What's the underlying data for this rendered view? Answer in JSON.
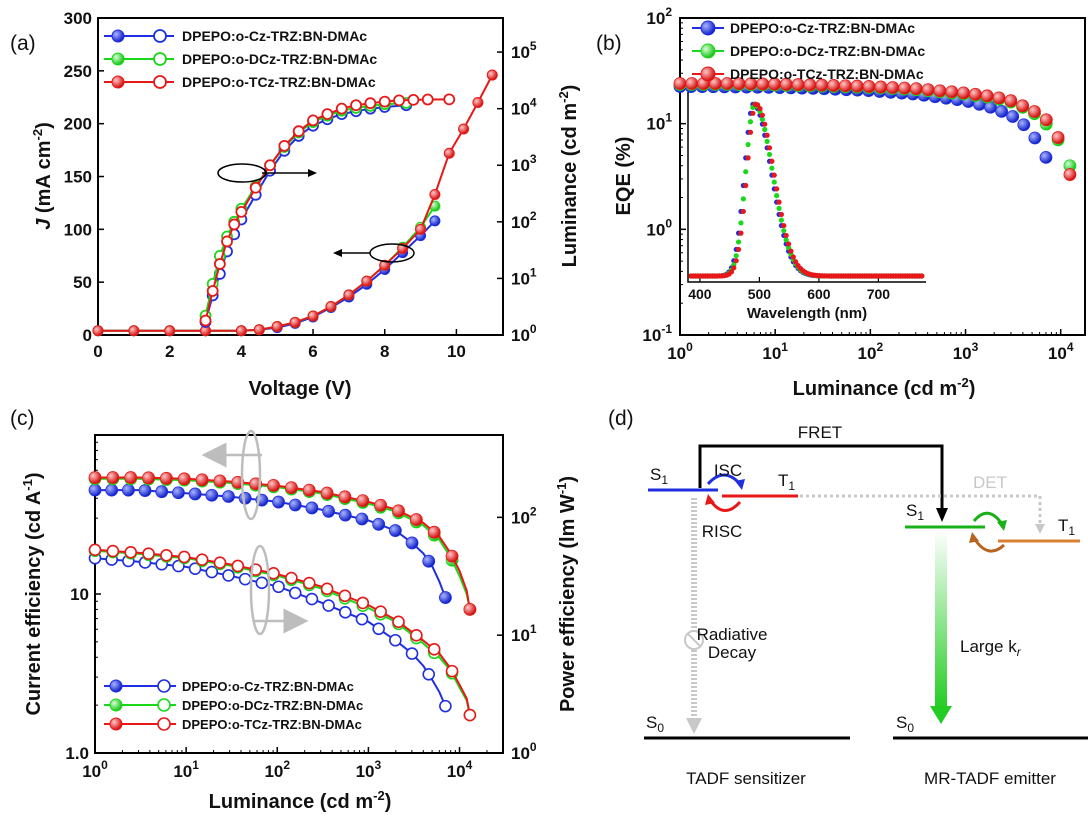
{
  "panels": {
    "a": "(a)",
    "b": "(b)",
    "c": "(c)",
    "d": "(d)"
  },
  "series_names": [
    "DPEPO:o-Cz-TRZ:BN-DMAc",
    "DPEPO:o-DCz-TRZ:BN-DMAc",
    "DPEPO:o-TCz-TRZ:BN-DMAc"
  ],
  "colors": {
    "s1": "#1f2fe0",
    "s2": "#19d819",
    "s3": "#e81818"
  },
  "chart_data": [
    {
      "type": "line",
      "panel": "a",
      "xlabel": "Voltage (V)",
      "ylabel": "J (mA cm-2)",
      "y2label": "Luminance (cd m-2)",
      "xlim": [
        0,
        11.3
      ],
      "ylim": [
        0,
        300
      ],
      "y2lim": [
        1,
        400000
      ],
      "y2scale": "log",
      "xticks": [
        "0",
        "2",
        "4",
        "6",
        "8",
        "10"
      ],
      "yticks": [
        "0",
        "50",
        "100",
        "150",
        "200",
        "250",
        "300"
      ],
      "y2ticks": [
        "10^0",
        "10^1",
        "10^2",
        "10^3",
        "10^4",
        "10^5"
      ],
      "current_density": [
        {
          "name": "DPEPO:o-Cz-TRZ:BN-DMAc",
          "x": [
            0,
            1,
            2,
            3,
            4,
            4.5,
            5,
            5.5,
            6,
            6.5,
            7,
            7.5,
            8,
            8.5,
            9,
            9.4
          ],
          "y": [
            4,
            4,
            4,
            4,
            4,
            5,
            7,
            11,
            17,
            26,
            36,
            48,
            62,
            78,
            94,
            108
          ]
        },
        {
          "name": "DPEPO:o-DCz-TRZ:BN-DMAc",
          "x": [
            0,
            1,
            2,
            3,
            4,
            4.5,
            5,
            5.5,
            6,
            6.5,
            7,
            7.5,
            8,
            8.5,
            9,
            9.4
          ],
          "y": [
            4,
            4,
            4,
            4,
            4,
            5,
            8,
            12,
            18,
            27,
            38,
            51,
            66,
            83,
            102,
            122
          ]
        },
        {
          "name": "DPEPO:o-TCz-TRZ:BN-DMAc",
          "x": [
            0,
            1,
            2,
            3,
            4,
            4.5,
            5,
            5.5,
            6,
            6.5,
            7,
            7.5,
            8,
            8.5,
            9,
            9.4,
            9.8,
            10.2,
            10.6,
            11
          ],
          "y": [
            4,
            4,
            4,
            4,
            4,
            5,
            8,
            12,
            18,
            27,
            38,
            51,
            66,
            82,
            100,
            133,
            172,
            195,
            220,
            246
          ]
        }
      ],
      "luminance": [
        {
          "name": "DPEPO:o-Cz-TRZ:BN-DMAc",
          "x": [
            3,
            3.2,
            3.4,
            3.6,
            3.8,
            4,
            4.4,
            4.8,
            5.2,
            5.6,
            6,
            6.4,
            6.8,
            7.2,
            7.6,
            8,
            8.6
          ],
          "y": [
            1.7,
            5,
            12,
            30,
            60,
            110,
            300,
            800,
            1800,
            3300,
            5000,
            6500,
            8000,
            9000,
            10000,
            10700,
            11500
          ]
        },
        {
          "name": "DPEPO:o-DCz-TRZ:BN-DMAc",
          "x": [
            3,
            3.2,
            3.4,
            3.6,
            3.8,
            4,
            4.4,
            4.8,
            5.2,
            5.6,
            6,
            6.4,
            6.8,
            7.2,
            7.6,
            8,
            8.6
          ],
          "y": [
            2.2,
            8,
            25,
            55,
            100,
            170,
            420,
            1000,
            2100,
            3800,
            5800,
            7500,
            9200,
            10300,
            11200,
            12000,
            12600
          ]
        },
        {
          "name": "DPEPO:o-TCz-TRZ:BN-DMAc",
          "x": [
            3,
            3.2,
            3.4,
            3.6,
            3.8,
            4,
            4.4,
            4.8,
            5.2,
            5.6,
            6,
            6.4,
            6.8,
            7.2,
            7.6,
            8,
            8.4,
            8.8,
            9.2,
            9.8
          ],
          "y": [
            1.8,
            6,
            18,
            45,
            90,
            150,
            400,
            1000,
            2200,
            4000,
            6200,
            8000,
            10000,
            11500,
            12500,
            13300,
            14000,
            14300,
            14500,
            14600
          ]
        }
      ]
    },
    {
      "type": "scatter",
      "panel": "b",
      "xlabel": "Luminance (cd m-2)",
      "ylabel": "EQE (%)",
      "xscale": "log",
      "yscale": "log",
      "xlim": [
        1,
        18000
      ],
      "ylim": [
        0.1,
        100
      ],
      "xticks": [
        "10^0",
        "10^1",
        "10^2",
        "10^3",
        "10^4"
      ],
      "yticks": [
        "10^-1",
        "10^0",
        "10^1",
        "10^2"
      ],
      "series": [
        {
          "name": "DPEPO:o-Cz-TRZ:BN-DMAc",
          "points": [
            [
              1,
              22.5
            ],
            [
              3,
              22.3
            ],
            [
              10,
              22
            ],
            [
              30,
              21.5
            ],
            [
              100,
              20.5
            ],
            [
              300,
              19
            ],
            [
              1000,
              16.5
            ],
            [
              2000,
              14
            ],
            [
              3000,
              12
            ],
            [
              4000,
              10
            ],
            [
              5000,
              8
            ],
            [
              6000,
              6.3
            ],
            [
              7000,
              4.8
            ]
          ]
        },
        {
          "name": "DPEPO:o-DCz-TRZ:BN-DMAc",
          "points": [
            [
              1,
              23.5
            ],
            [
              3,
              23.5
            ],
            [
              10,
              23.2
            ],
            [
              30,
              22.7
            ],
            [
              100,
              22
            ],
            [
              300,
              21
            ],
            [
              1000,
              19
            ],
            [
              2000,
              17.5
            ],
            [
              3000,
              16
            ],
            [
              5000,
              13
            ],
            [
              7000,
              10
            ],
            [
              9000,
              7.5
            ],
            [
              11000,
              5.5
            ],
            [
              12500,
              4
            ]
          ]
        },
        {
          "name": "DPEPO:o-TCz-TRZ:BN-DMAc",
          "points": [
            [
              1,
              24
            ],
            [
              3,
              24
            ],
            [
              10,
              23.7
            ],
            [
              30,
              23.2
            ],
            [
              100,
              22.5
            ],
            [
              300,
              21.5
            ],
            [
              1000,
              19.5
            ],
            [
              2000,
              18
            ],
            [
              3000,
              16.5
            ],
            [
              5000,
              13.5
            ],
            [
              7000,
              11
            ],
            [
              9000,
              8
            ],
            [
              11000,
              5.5
            ],
            [
              12500,
              3.3
            ]
          ]
        }
      ],
      "inset": {
        "type": "line",
        "xlabel": "Wavelength (nm)",
        "xlim": [
          380,
          780
        ],
        "xticks": [
          "400",
          "500",
          "600",
          "700"
        ],
        "series": [
          {
            "name": "DPEPO:o-Cz-TRZ:BN-DMAc",
            "peak": 490
          },
          {
            "name": "DPEPO:o-DCz-TRZ:BN-DMAc",
            "peak": 492
          },
          {
            "name": "DPEPO:o-TCz-TRZ:BN-DMAc",
            "peak": 494
          }
        ]
      }
    },
    {
      "type": "line",
      "panel": "c",
      "xlabel": "Luminance (cd m-2)",
      "ylabel": "Current efficiency (cd A-1)",
      "y2label": "Power efficiency (lm W-1)",
      "xscale": "log",
      "yscale": "log",
      "xlim": [
        1,
        30000
      ],
      "ylim": [
        1,
        100
      ],
      "y2lim": [
        1,
        500
      ],
      "xticks": [
        "10^0",
        "10^1",
        "10^2",
        "10^3",
        "10^4"
      ],
      "yticks": [
        "1.0",
        "10"
      ],
      "y2ticks": [
        "10^0",
        "10^1",
        "10^2"
      ],
      "current_efficiency": [
        {
          "name": "DPEPO:o-Cz-TRZ:BN-DMAc",
          "points": [
            [
              1,
              45
            ],
            [
              3,
              45
            ],
            [
              10,
              43
            ],
            [
              30,
              41
            ],
            [
              100,
              38
            ],
            [
              300,
              34
            ],
            [
              1000,
              29
            ],
            [
              2000,
              25
            ],
            [
              3000,
              21
            ],
            [
              4000,
              18
            ],
            [
              5000,
              15
            ],
            [
              6000,
              12
            ],
            [
              7000,
              9.5
            ]
          ]
        },
        {
          "name": "DPEPO:o-DCz-TRZ:BN-DMAc",
          "points": [
            [
              1,
              53
            ],
            [
              3,
              53
            ],
            [
              10,
              52
            ],
            [
              30,
              50
            ],
            [
              100,
              47
            ],
            [
              300,
              43
            ],
            [
              1000,
              37
            ],
            [
              2000,
              33
            ],
            [
              4000,
              27
            ],
            [
              6000,
              22
            ],
            [
              8000,
              17
            ],
            [
              10000,
              13
            ],
            [
              12000,
              10
            ],
            [
              13000,
              8
            ]
          ]
        },
        {
          "name": "DPEPO:o-TCz-TRZ:BN-DMAc",
          "points": [
            [
              1,
              54
            ],
            [
              3,
              54
            ],
            [
              10,
              53
            ],
            [
              30,
              51
            ],
            [
              100,
              48
            ],
            [
              300,
              44
            ],
            [
              1000,
              38
            ],
            [
              2000,
              34
            ],
            [
              4000,
              28
            ],
            [
              6000,
              23
            ],
            [
              8000,
              18
            ],
            [
              10000,
              14
            ],
            [
              12000,
              10.5
            ],
            [
              13000,
              8
            ]
          ]
        }
      ],
      "power_efficiency": [
        {
          "name": "DPEPO:o-Cz-TRZ:BN-DMAc",
          "points": [
            [
              1,
              45
            ],
            [
              3,
              42
            ],
            [
              10,
              38
            ],
            [
              30,
              32
            ],
            [
              100,
              26
            ],
            [
              300,
              19
            ],
            [
              1000,
              13
            ],
            [
              2000,
              9
            ],
            [
              3000,
              7
            ],
            [
              4000,
              5.5
            ],
            [
              5000,
              4.2
            ],
            [
              6000,
              3.3
            ],
            [
              7000,
              2.5
            ]
          ]
        },
        {
          "name": "DPEPO:o-DCz-TRZ:BN-DMAc",
          "points": [
            [
              1,
              52
            ],
            [
              3,
              49
            ],
            [
              10,
              45
            ],
            [
              30,
              39
            ],
            [
              100,
              32
            ],
            [
              300,
              25
            ],
            [
              1000,
              17
            ],
            [
              2000,
              13
            ],
            [
              4000,
              8.5
            ],
            [
              6000,
              6.5
            ],
            [
              8000,
              5
            ],
            [
              10000,
              3.6
            ],
            [
              12000,
              2.8
            ],
            [
              13000,
              2.1
            ]
          ]
        },
        {
          "name": "DPEPO:o-TCz-TRZ:BN-DMAc",
          "points": [
            [
              1,
              53
            ],
            [
              3,
              50
            ],
            [
              10,
              46
            ],
            [
              30,
              40
            ],
            [
              100,
              33
            ],
            [
              300,
              26
            ],
            [
              1000,
              18
            ],
            [
              2000,
              13.5
            ],
            [
              4000,
              9
            ],
            [
              6000,
              7
            ],
            [
              8000,
              5.2
            ],
            [
              10000,
              3.8
            ],
            [
              12000,
              2.9
            ],
            [
              13000,
              2.1
            ]
          ]
        }
      ]
    }
  ],
  "diagram": {
    "fret": "FRET",
    "det": "DET",
    "isc": "ISC",
    "risc": "RISC",
    "s1": "S",
    "t1": "T",
    "s0": "S",
    "sub1": "1",
    "sub0": "0",
    "radiative": "Radiative",
    "decay": "Decay",
    "large_kr": "Large k",
    "kr_sub": "r",
    "tadf_sensitizer": "TADF sensitizer",
    "mr_tadf_emitter": "MR-TADF emitter"
  }
}
